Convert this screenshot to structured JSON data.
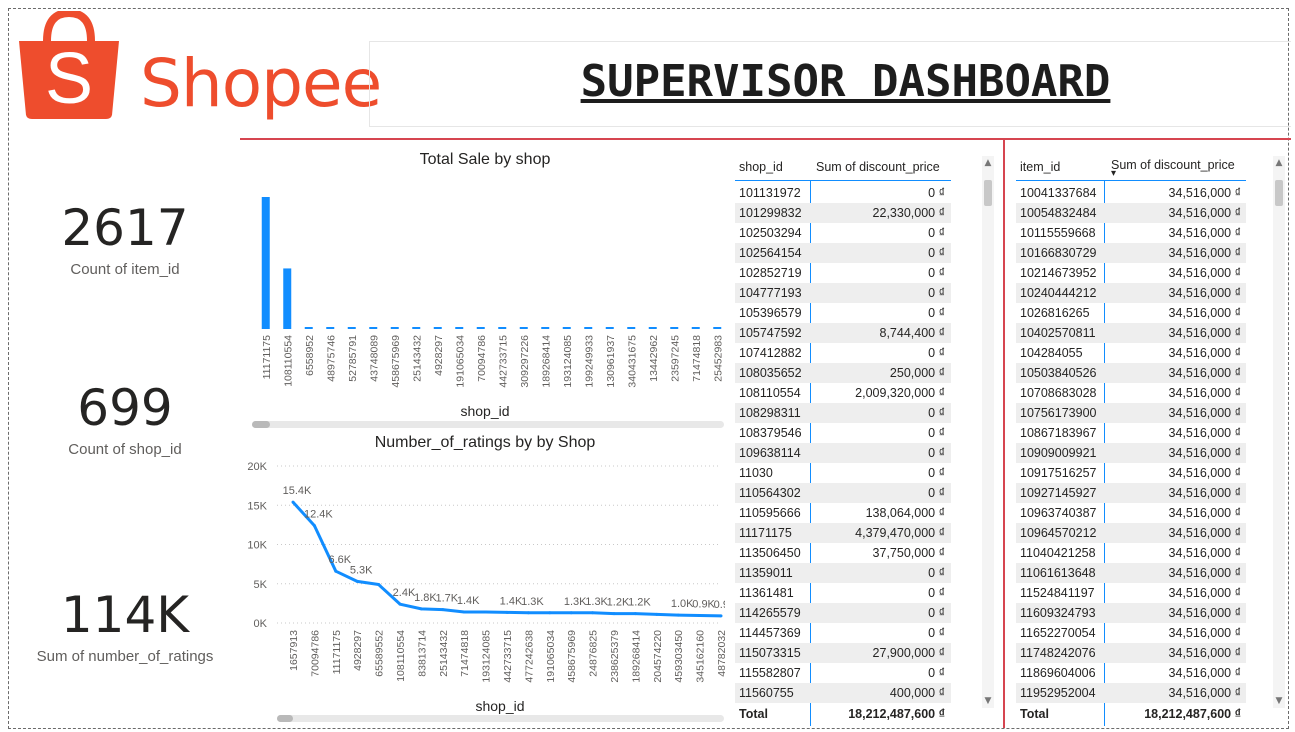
{
  "brand": {
    "name": "Shopee",
    "color": "#ee4d2d",
    "bag_letter": "S"
  },
  "header": {
    "title": "SUPERVISOR DASHBOARD"
  },
  "kpis": [
    {
      "value": "2617",
      "label": "Count of item_id"
    },
    {
      "value": "699",
      "label": "Count of shop_id"
    },
    {
      "value": "114K",
      "label": "Sum of number_of_ratings"
    }
  ],
  "chart_data": [
    {
      "type": "bar",
      "title": "Total Sale by shop",
      "xlabel": "shop_id",
      "ylabel": "",
      "color": "#118dff",
      "categories": [
        "11171175",
        "108110554",
        "6558952",
        "48975746",
        "52785791",
        "43748089",
        "458675969",
        "25143432",
        "4928297",
        "191065034",
        "70094786",
        "442733715",
        "309297226",
        "189268414",
        "193124085",
        "199249933",
        "130961937",
        "340431675",
        "13442962",
        "23597245",
        "71474818",
        "25452983"
      ],
      "values": [
        4379470000,
        2009320000,
        700000,
        550000,
        500000,
        300000,
        280000,
        260000,
        220000,
        200000,
        190000,
        180000,
        170000,
        160000,
        150000,
        140000,
        130000,
        120000,
        110000,
        100000,
        95000,
        90000
      ]
    },
    {
      "type": "line",
      "title": "Number_of_ratings by by Shop",
      "xlabel": "shop_id",
      "ylabel": "",
      "color": "#118dff",
      "yticks": [
        "20K",
        "15K",
        "10K",
        "5K",
        "0K"
      ],
      "ylim": [
        0,
        20000
      ],
      "categories": [
        "1657913",
        "70094786",
        "11171175",
        "4928297",
        "65589552",
        "108110554",
        "83813714",
        "25143432",
        "71474818",
        "193124085",
        "442733715",
        "477242638",
        "191065034",
        "458675969",
        "24876825",
        "238625379",
        "189268414",
        "204574220",
        "459303450",
        "345162160",
        "48782032"
      ],
      "values": [
        15400,
        12400,
        6600,
        5300,
        4900,
        2400,
        1800,
        1700,
        1400,
        1400,
        1350,
        1300,
        1300,
        1300,
        1300,
        1200,
        1200,
        1100,
        1000,
        950,
        900
      ],
      "labels": [
        "15.4K",
        "12.4K",
        "6.6K",
        "5.3K",
        "",
        "2.4K",
        "1.8K",
        "1.7K",
        "1.4K",
        "",
        "1.4K",
        "1.3K",
        "",
        "1.3K",
        "1.3K",
        "1.2K",
        "1.2K",
        "",
        "1.0K",
        "0.9K",
        "0.9K"
      ]
    }
  ],
  "shop_table": {
    "headers": [
      "shop_id",
      "Sum of discount_price"
    ],
    "rows": [
      [
        "101131972",
        "0 ₫"
      ],
      [
        "101299832",
        "22,330,000 ₫"
      ],
      [
        "102503294",
        "0 ₫"
      ],
      [
        "102564154",
        "0 ₫"
      ],
      [
        "102852719",
        "0 ₫"
      ],
      [
        "104777193",
        "0 ₫"
      ],
      [
        "105396579",
        "0 ₫"
      ],
      [
        "105747592",
        "8,744,400 ₫"
      ],
      [
        "107412882",
        "0 ₫"
      ],
      [
        "108035652",
        "250,000 ₫"
      ],
      [
        "108110554",
        "2,009,320,000 ₫"
      ],
      [
        "108298311",
        "0 ₫"
      ],
      [
        "108379546",
        "0 ₫"
      ],
      [
        "109638114",
        "0 ₫"
      ],
      [
        "11030",
        "0 ₫"
      ],
      [
        "110564302",
        "0 ₫"
      ],
      [
        "110595666",
        "138,064,000 ₫"
      ],
      [
        "11171175",
        "4,379,470,000 ₫"
      ],
      [
        "113506450",
        "37,750,000 ₫"
      ],
      [
        "11359011",
        "0 ₫"
      ],
      [
        "11361481",
        "0 ₫"
      ],
      [
        "114265579",
        "0 ₫"
      ],
      [
        "114457369",
        "0 ₫"
      ],
      [
        "115073315",
        "27,900,000 ₫"
      ],
      [
        "115582807",
        "0 ₫"
      ],
      [
        "11560755",
        "400,000 ₫"
      ]
    ],
    "total_label": "Total",
    "total_value": "18,212,487,600 ₫"
  },
  "item_table": {
    "headers": [
      "item_id",
      "Sum of discount_price"
    ],
    "sort_indicator": "▾",
    "rows": [
      [
        "10041337684",
        "34,516,000 ₫"
      ],
      [
        "10054832484",
        "34,516,000 ₫"
      ],
      [
        "10115559668",
        "34,516,000 ₫"
      ],
      [
        "10166830729",
        "34,516,000 ₫"
      ],
      [
        "10214673952",
        "34,516,000 ₫"
      ],
      [
        "10240444212",
        "34,516,000 ₫"
      ],
      [
        "1026816265",
        "34,516,000 ₫"
      ],
      [
        "10402570811",
        "34,516,000 ₫"
      ],
      [
        "104284055",
        "34,516,000 ₫"
      ],
      [
        "10503840526",
        "34,516,000 ₫"
      ],
      [
        "10708683028",
        "34,516,000 ₫"
      ],
      [
        "10756173900",
        "34,516,000 ₫"
      ],
      [
        "10867183967",
        "34,516,000 ₫"
      ],
      [
        "10909009921",
        "34,516,000 ₫"
      ],
      [
        "10917516257",
        "34,516,000 ₫"
      ],
      [
        "10927145927",
        "34,516,000 ₫"
      ],
      [
        "10963740387",
        "34,516,000 ₫"
      ],
      [
        "10964570212",
        "34,516,000 ₫"
      ],
      [
        "11040421258",
        "34,516,000 ₫"
      ],
      [
        "11061613648",
        "34,516,000 ₫"
      ],
      [
        "11524841197",
        "34,516,000 ₫"
      ],
      [
        "11609324793",
        "34,516,000 ₫"
      ],
      [
        "11652270054",
        "34,516,000 ₫"
      ],
      [
        "11748242076",
        "34,516,000 ₫"
      ],
      [
        "11869604006",
        "34,516,000 ₫"
      ],
      [
        "11952952004",
        "34,516,000 ₫"
      ]
    ],
    "total_label": "Total",
    "total_value": "18,212,487,600 ₫"
  }
}
